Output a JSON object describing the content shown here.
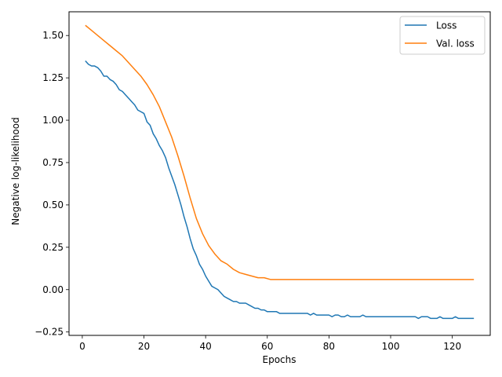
{
  "chart_data": {
    "type": "line",
    "title": "",
    "xlabel": "Epochs",
    "ylabel": "Negative log-likelihood",
    "xlim": [
      -4.3,
      132.3
    ],
    "ylim": [
      -0.27,
      1.64
    ],
    "xticks": [
      0,
      20,
      40,
      60,
      80,
      100,
      120
    ],
    "xtick_labels": [
      "0",
      "20",
      "40",
      "60",
      "80",
      "100",
      "120"
    ],
    "yticks": [
      -0.25,
      0.0,
      0.25,
      0.5,
      0.75,
      1.0,
      1.25,
      1.5
    ],
    "ytick_labels": [
      "−0.25",
      "0.00",
      "0.25",
      "0.50",
      "0.75",
      "1.00",
      "1.25",
      "1.50"
    ],
    "grid": false,
    "legend_position": "top-right",
    "series": [
      {
        "name": "Loss",
        "color": "#1f77b4",
        "points": [
          [
            1,
            1.35
          ],
          [
            2,
            1.33
          ],
          [
            3,
            1.32
          ],
          [
            4,
            1.32
          ],
          [
            5,
            1.31
          ],
          [
            6,
            1.29
          ],
          [
            7,
            1.26
          ],
          [
            8,
            1.26
          ],
          [
            9,
            1.24
          ],
          [
            10,
            1.23
          ],
          [
            11,
            1.21
          ],
          [
            12,
            1.18
          ],
          [
            13,
            1.17
          ],
          [
            14,
            1.15
          ],
          [
            15,
            1.13
          ],
          [
            16,
            1.11
          ],
          [
            17,
            1.09
          ],
          [
            18,
            1.06
          ],
          [
            19,
            1.05
          ],
          [
            20,
            1.04
          ],
          [
            21,
            0.99
          ],
          [
            22,
            0.97
          ],
          [
            23,
            0.92
          ],
          [
            24,
            0.89
          ],
          [
            25,
            0.85
          ],
          [
            26,
            0.82
          ],
          [
            27,
            0.78
          ],
          [
            28,
            0.72
          ],
          [
            29,
            0.67
          ],
          [
            30,
            0.62
          ],
          [
            31,
            0.56
          ],
          [
            32,
            0.5
          ],
          [
            33,
            0.43
          ],
          [
            34,
            0.37
          ],
          [
            35,
            0.3
          ],
          [
            36,
            0.24
          ],
          [
            37,
            0.2
          ],
          [
            38,
            0.15
          ],
          [
            39,
            0.12
          ],
          [
            40,
            0.08
          ],
          [
            41,
            0.05
          ],
          [
            42,
            0.02
          ],
          [
            43,
            0.01
          ],
          [
            44,
            0.0
          ],
          [
            45,
            -0.02
          ],
          [
            46,
            -0.04
          ],
          [
            47,
            -0.05
          ],
          [
            48,
            -0.06
          ],
          [
            49,
            -0.07
          ],
          [
            50,
            -0.07
          ],
          [
            51,
            -0.08
          ],
          [
            52,
            -0.08
          ],
          [
            53,
            -0.08
          ],
          [
            54,
            -0.09
          ],
          [
            55,
            -0.1
          ],
          [
            56,
            -0.11
          ],
          [
            57,
            -0.11
          ],
          [
            58,
            -0.12
          ],
          [
            59,
            -0.12
          ],
          [
            60,
            -0.13
          ],
          [
            61,
            -0.13
          ],
          [
            62,
            -0.13
          ],
          [
            63,
            -0.13
          ],
          [
            64,
            -0.14
          ],
          [
            65,
            -0.14
          ],
          [
            66,
            -0.14
          ],
          [
            67,
            -0.14
          ],
          [
            68,
            -0.14
          ],
          [
            69,
            -0.14
          ],
          [
            70,
            -0.14
          ],
          [
            71,
            -0.14
          ],
          [
            72,
            -0.14
          ],
          [
            73,
            -0.14
          ],
          [
            74,
            -0.15
          ],
          [
            75,
            -0.14
          ],
          [
            76,
            -0.15
          ],
          [
            77,
            -0.15
          ],
          [
            78,
            -0.15
          ],
          [
            79,
            -0.15
          ],
          [
            80,
            -0.15
          ],
          [
            81,
            -0.16
          ],
          [
            82,
            -0.15
          ],
          [
            83,
            -0.15
          ],
          [
            84,
            -0.16
          ],
          [
            85,
            -0.16
          ],
          [
            86,
            -0.15
          ],
          [
            87,
            -0.16
          ],
          [
            88,
            -0.16
          ],
          [
            89,
            -0.16
          ],
          [
            90,
            -0.16
          ],
          [
            91,
            -0.15
          ],
          [
            92,
            -0.16
          ],
          [
            93,
            -0.16
          ],
          [
            94,
            -0.16
          ],
          [
            95,
            -0.16
          ],
          [
            96,
            -0.16
          ],
          [
            97,
            -0.16
          ],
          [
            98,
            -0.16
          ],
          [
            99,
            -0.16
          ],
          [
            100,
            -0.16
          ],
          [
            101,
            -0.16
          ],
          [
            102,
            -0.16
          ],
          [
            103,
            -0.16
          ],
          [
            104,
            -0.16
          ],
          [
            105,
            -0.16
          ],
          [
            106,
            -0.16
          ],
          [
            107,
            -0.16
          ],
          [
            108,
            -0.16
          ],
          [
            109,
            -0.17
          ],
          [
            110,
            -0.16
          ],
          [
            111,
            -0.16
          ],
          [
            112,
            -0.16
          ],
          [
            113,
            -0.17
          ],
          [
            114,
            -0.17
          ],
          [
            115,
            -0.17
          ],
          [
            116,
            -0.16
          ],
          [
            117,
            -0.17
          ],
          [
            118,
            -0.17
          ],
          [
            119,
            -0.17
          ],
          [
            120,
            -0.17
          ],
          [
            121,
            -0.16
          ],
          [
            122,
            -0.17
          ],
          [
            123,
            -0.17
          ],
          [
            124,
            -0.17
          ],
          [
            125,
            -0.17
          ],
          [
            126,
            -0.17
          ],
          [
            127,
            -0.17
          ]
        ]
      },
      {
        "name": "Val. loss",
        "color": "#ff7f0e",
        "points": [
          [
            1,
            1.56
          ],
          [
            3,
            1.53
          ],
          [
            5,
            1.5
          ],
          [
            7,
            1.47
          ],
          [
            9,
            1.44
          ],
          [
            11,
            1.41
          ],
          [
            13,
            1.38
          ],
          [
            15,
            1.34
          ],
          [
            17,
            1.3
          ],
          [
            19,
            1.26
          ],
          [
            21,
            1.21
          ],
          [
            23,
            1.15
          ],
          [
            25,
            1.08
          ],
          [
            27,
            0.99
          ],
          [
            29,
            0.9
          ],
          [
            31,
            0.79
          ],
          [
            33,
            0.67
          ],
          [
            35,
            0.54
          ],
          [
            37,
            0.42
          ],
          [
            39,
            0.33
          ],
          [
            41,
            0.26
          ],
          [
            43,
            0.21
          ],
          [
            45,
            0.17
          ],
          [
            47,
            0.15
          ],
          [
            49,
            0.12
          ],
          [
            51,
            0.1
          ],
          [
            53,
            0.09
          ],
          [
            55,
            0.08
          ],
          [
            57,
            0.07
          ],
          [
            59,
            0.07
          ],
          [
            61,
            0.06
          ],
          [
            63,
            0.06
          ],
          [
            66,
            0.06
          ],
          [
            70,
            0.06
          ],
          [
            75,
            0.06
          ],
          [
            80,
            0.06
          ],
          [
            85,
            0.06
          ],
          [
            90,
            0.06
          ],
          [
            95,
            0.06
          ],
          [
            100,
            0.06
          ],
          [
            105,
            0.06
          ],
          [
            110,
            0.06
          ],
          [
            115,
            0.06
          ],
          [
            120,
            0.06
          ],
          [
            125,
            0.06
          ],
          [
            127,
            0.06
          ]
        ]
      }
    ]
  }
}
